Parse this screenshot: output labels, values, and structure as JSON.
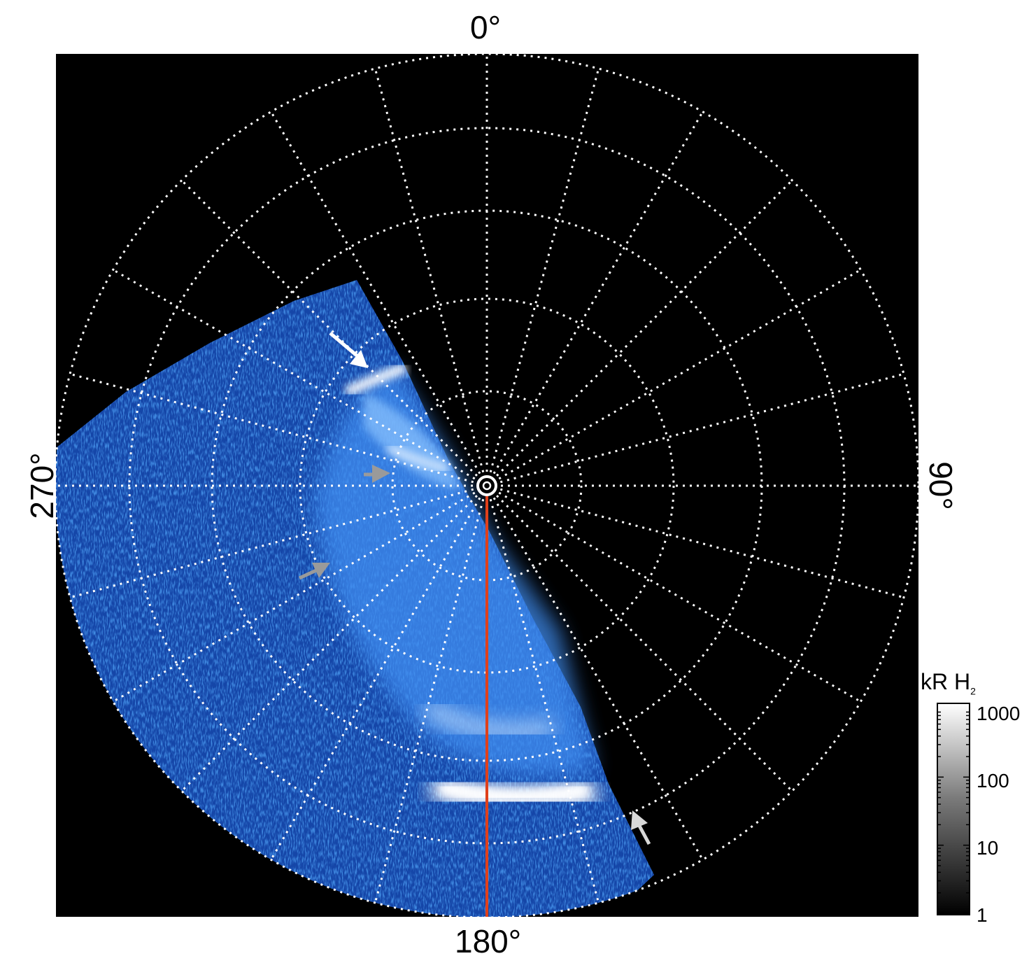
{
  "figure": {
    "labels": {
      "top": "0°",
      "right": "90°",
      "bottom": "180°",
      "left": "270°"
    },
    "colorbar": {
      "unit": "kR",
      "species": "H",
      "species_subscript": "2",
      "scale": "log",
      "ticks": [
        "1",
        "10",
        "100",
        "1000"
      ]
    },
    "colors": {
      "background": "#000000",
      "grid": "#ffffff",
      "emission": "#2a78e0",
      "emission_bright": "#ffffff",
      "meridian_line": "#e0401a",
      "arrow_white": "#ffffff",
      "arrow_gray": "#9a9a9a",
      "arrow_light": "#d8d8d8"
    },
    "arrows": [
      {
        "name": "arrow-upper",
        "color": "white"
      },
      {
        "name": "arrow-middle",
        "color": "gray"
      },
      {
        "name": "arrow-lower-left",
        "color": "gray"
      },
      {
        "name": "arrow-lower-right",
        "color": "light-gray"
      }
    ]
  }
}
